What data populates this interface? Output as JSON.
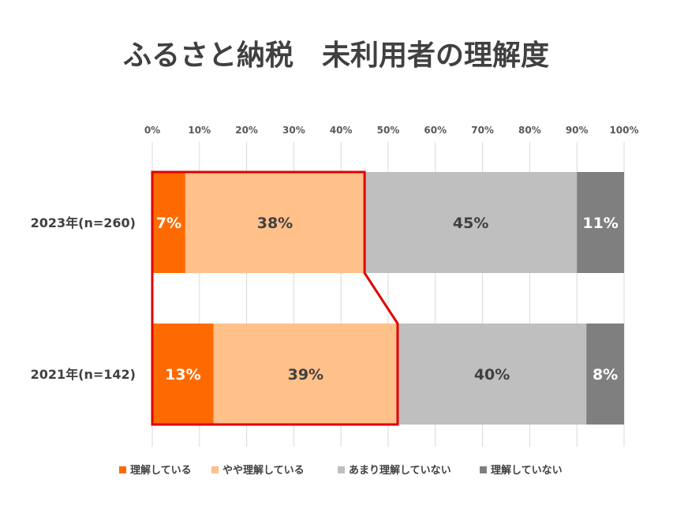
{
  "chart_data": {
    "type": "bar",
    "orientation": "horizontal",
    "stacked": "percent",
    "title": "ふるさと納税　未利用者の理解度",
    "xlim": [
      0,
      100
    ],
    "xticks": [
      "0%",
      "10%",
      "20%",
      "30%",
      "40%",
      "50%",
      "60%",
      "70%",
      "80%",
      "90%",
      "100%"
    ],
    "axis_position": "top",
    "grid": true,
    "legend_position": "bottom",
    "categories": [
      "2023年(n=260)",
      "2021年(n=142)"
    ],
    "series": [
      {
        "name": "理解している",
        "color": "#FF6A00",
        "label_color": "#FFFFFF",
        "values": [
          7,
          13
        ],
        "labels": [
          "7%",
          "13%"
        ]
      },
      {
        "name": "やや理解している",
        "color": "#FFC08A",
        "label_color": "#404040",
        "values": [
          38,
          39
        ],
        "labels": [
          "38%",
          "39%"
        ]
      },
      {
        "name": "あまり理解していない",
        "color": "#BFBFBF",
        "label_color": "#404040",
        "values": [
          45,
          40
        ],
        "labels": [
          "45%",
          "40%"
        ]
      },
      {
        "name": "理解していない",
        "color": "#7F7F7F",
        "label_color": "#FFFFFF",
        "values": [
          11,
          8
        ],
        "labels": [
          "11%",
          "8%"
        ]
      }
    ],
    "highlight": {
      "color": "#E00000",
      "series_included": [
        "理解している",
        "やや理解している"
      ]
    }
  }
}
